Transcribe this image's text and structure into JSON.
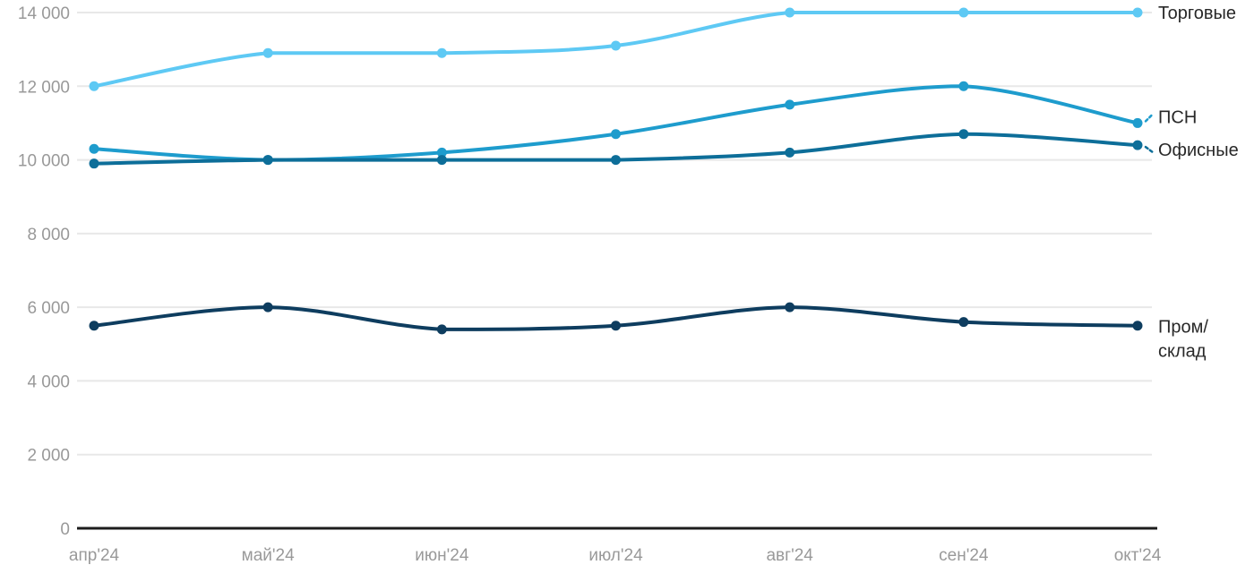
{
  "chart_data": {
    "type": "line",
    "title": "",
    "xlabel": "",
    "ylabel": "",
    "x": [
      "апр'24",
      "май'24",
      "июн'24",
      "июл'24",
      "авг'24",
      "сен'24",
      "окт'24"
    ],
    "series": [
      {
        "name": "Торговые",
        "color": "#5ec9f4",
        "values": [
          12000,
          12900,
          12900,
          13100,
          14000,
          14000,
          14000
        ],
        "label_lines": [
          "Торговые"
        ],
        "label_dy": 0,
        "connector": false
      },
      {
        "name": "ПСН",
        "color": "#1e9ccd",
        "values": [
          10300,
          10000,
          10200,
          10700,
          11500,
          12000,
          11000
        ],
        "label_lines": [
          "ПСН"
        ],
        "label_dy": -7,
        "connector": true
      },
      {
        "name": "Офисные",
        "color": "#0d6e99",
        "values": [
          9900,
          10000,
          10000,
          10000,
          10200,
          10700,
          10400
        ],
        "label_lines": [
          "Офисные"
        ],
        "label_dy": 5,
        "connector": true
      },
      {
        "name": "Пром/склад",
        "color": "#0e3d5f",
        "values": [
          5500,
          6000,
          5400,
          5500,
          6000,
          5600,
          5500
        ],
        "label_lines": [
          "Пром/",
          "склад"
        ],
        "label_dy": 1,
        "connector": false
      }
    ],
    "ylim": [
      0,
      14000
    ],
    "ytick_step": 2000,
    "ytick_labels": [
      "0",
      "2 000",
      "4 000",
      "6 000",
      "8 000",
      "10 000",
      "12 000",
      "14 000"
    ],
    "grid": true,
    "legend_position": "right-end-of-line"
  },
  "colors": {
    "background": "#ffffff",
    "gridline": "#e8e8e8",
    "axis_line": "#1c1c1c",
    "tick_text": "#999999",
    "label_text": "#282828"
  }
}
